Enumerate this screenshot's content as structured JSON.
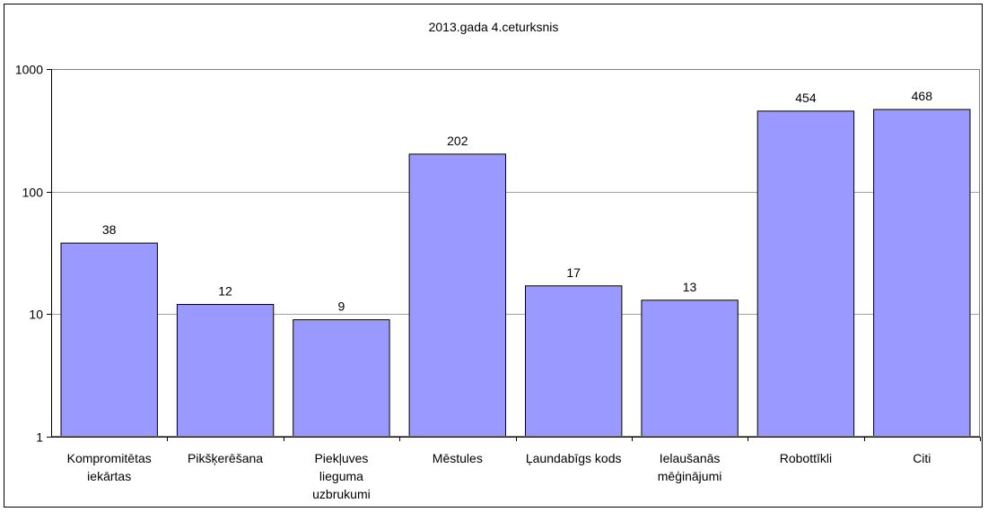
{
  "chart_data": {
    "type": "bar",
    "title": "2013.gada 4.ceturksnis",
    "xlabel": "",
    "ylabel": "",
    "yscale": "log",
    "ylim": [
      1,
      1000
    ],
    "yticks": [
      "1",
      "10",
      "100",
      "1000"
    ],
    "grid": true,
    "legend": "none",
    "bar_color": "#9999ff",
    "categories": [
      [
        "Kompromitētas",
        "iekārtas"
      ],
      [
        "Pikšķerēšana"
      ],
      [
        "Piekļuves",
        "lieguma",
        "uzbrukumi"
      ],
      [
        "Mēstules"
      ],
      [
        "Ļaundabīgs kods"
      ],
      [
        "Ielaušanās",
        "mēģinājumi"
      ],
      [
        "Robottīkli"
      ],
      [
        "Citi"
      ]
    ],
    "values": [
      38,
      12,
      9,
      202,
      17,
      13,
      454,
      468
    ],
    "data_labels": [
      "38",
      "12",
      "9",
      "202",
      "17",
      "13",
      "454",
      "468"
    ]
  }
}
